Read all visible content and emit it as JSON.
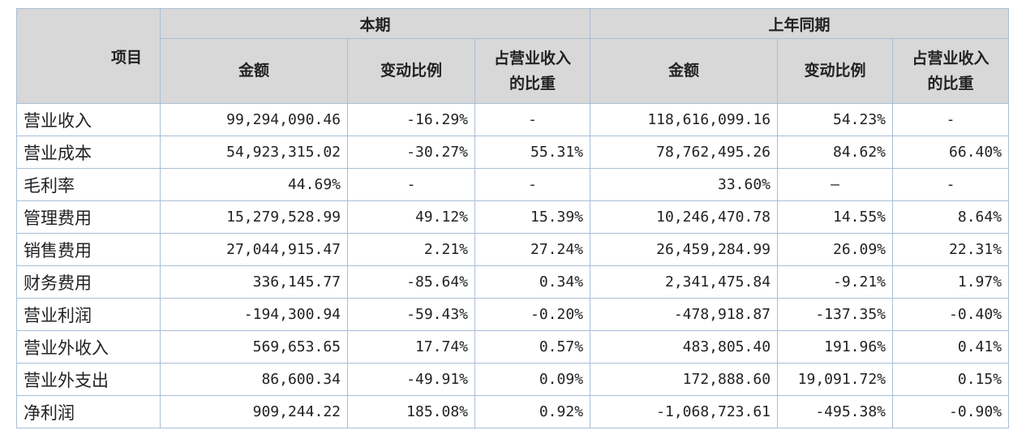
{
  "table": {
    "header": {
      "item": "项目",
      "groups": [
        "本期",
        "上年同期"
      ],
      "columns": [
        "金额",
        "变动比例",
        "占营业收入的比重",
        "金额",
        "变动比例",
        "占营业收入的比重"
      ]
    },
    "rows": [
      [
        "营业收入",
        "99,294,090.46",
        "-16.29%",
        "-",
        "118,616,099.16",
        "54.23%",
        "-"
      ],
      [
        "营业成本",
        "54,923,315.02",
        "-30.27%",
        "55.31%",
        "78,762,495.26",
        "84.62%",
        "66.40%"
      ],
      [
        "毛利率",
        "44.69%",
        "-",
        "-",
        "33.60%",
        "–",
        "-"
      ],
      [
        "管理费用",
        "15,279,528.99",
        "49.12%",
        "15.39%",
        "10,246,470.78",
        "14.55%",
        "8.64%"
      ],
      [
        "销售费用",
        "27,044,915.47",
        "2.21%",
        "27.24%",
        "26,459,284.99",
        "26.09%",
        "22.31%"
      ],
      [
        "财务费用",
        "336,145.77",
        "-85.64%",
        "0.34%",
        "2,341,475.84",
        "-9.21%",
        "1.97%"
      ],
      [
        "营业利润",
        "-194,300.94",
        "-59.43%",
        "-0.20%",
        "-478,918.87",
        "-137.35%",
        "-0.40%"
      ],
      [
        "营业外收入",
        "569,653.65",
        "17.74%",
        "0.57%",
        "483,805.40",
        "191.96%",
        "0.41%"
      ],
      [
        "营业外支出",
        "86,600.34",
        "-49.91%",
        "0.09%",
        "172,888.60",
        "19,091.72%",
        "0.15%"
      ],
      [
        "净利润",
        "909,244.22",
        "185.08%",
        "0.92%",
        "-1,068,723.61",
        "-495.38%",
        "-0.90%"
      ]
    ]
  }
}
